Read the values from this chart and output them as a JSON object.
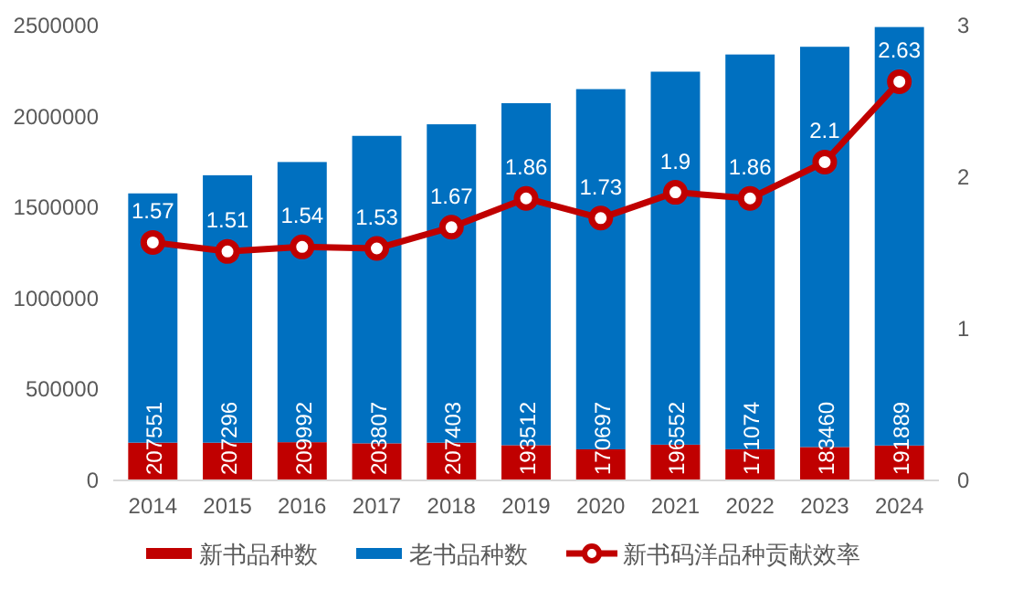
{
  "chart_data": {
    "type": "bar",
    "stacked": true,
    "categories": [
      "2014",
      "2015",
      "2016",
      "2017",
      "2018",
      "2019",
      "2020",
      "2021",
      "2022",
      "2023",
      "2024"
    ],
    "series": [
      {
        "name": "新书品种数",
        "color": "#c00000",
        "values": [
          207551,
          207296,
          209992,
          203807,
          207403,
          193512,
          170697,
          196552,
          171074,
          183460,
          191889
        ],
        "value_labels": [
          "207551",
          "207296",
          "209992",
          "203807",
          "207403",
          "193512",
          "170697",
          "196552",
          "171074",
          "183460",
          "191889"
        ]
      },
      {
        "name": "老书品种数",
        "color": "#0070c0",
        "values": [
          1370000,
          1470000,
          1540000,
          1690000,
          1750000,
          1880000,
          1980000,
          2050000,
          2170000,
          2200000,
          2300000
        ]
      },
      {
        "name": "新书码洋品种贡献效率",
        "type": "line",
        "axis": "y2",
        "color": "#c00000",
        "marker": "circle",
        "values": [
          1.57,
          1.51,
          1.54,
          1.53,
          1.67,
          1.86,
          1.73,
          1.9,
          1.86,
          2.1,
          2.63
        ],
        "value_labels": [
          "1.57",
          "1.51",
          "1.54",
          "1.53",
          "1.67",
          "1.86",
          "1.73",
          "1.9",
          "1.86",
          "2.1",
          "2.63"
        ]
      }
    ],
    "ylim": [
      0,
      2500000
    ],
    "yticks": [
      0,
      500000,
      1000000,
      1500000,
      2000000,
      2500000
    ],
    "y2lim": [
      0,
      3
    ],
    "y2ticks": [
      0,
      1,
      2,
      3
    ],
    "grid": false,
    "legend": "bottom"
  }
}
